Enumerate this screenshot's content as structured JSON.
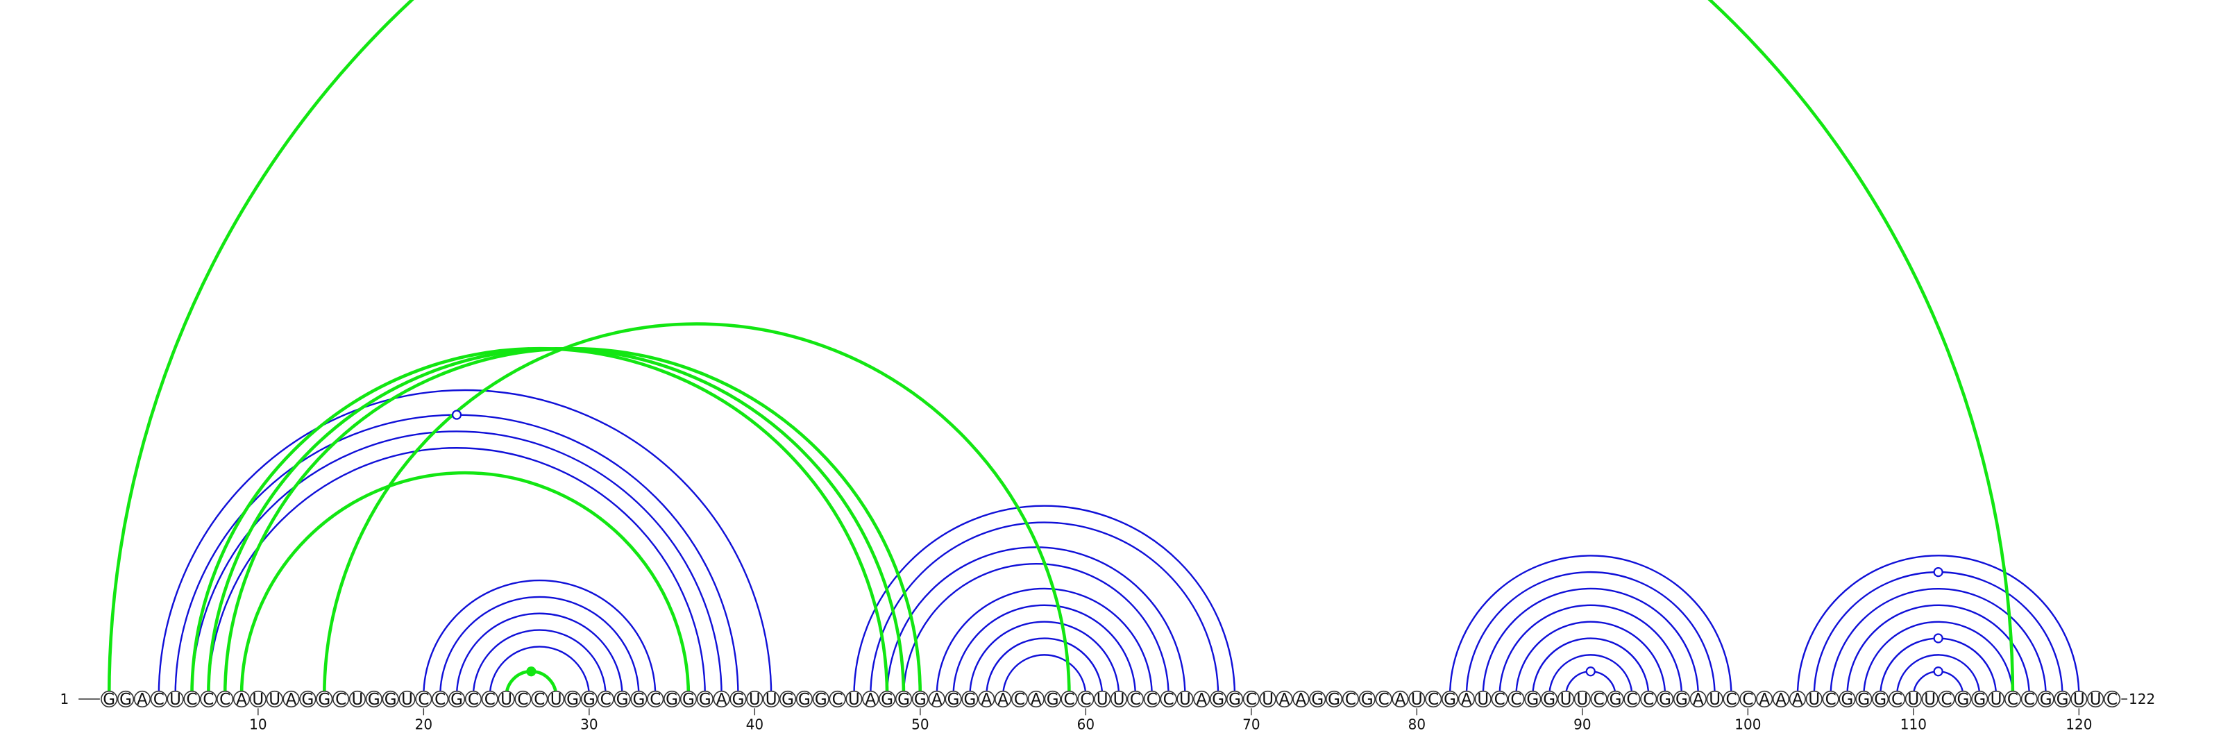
{
  "sequence": "GGACUCCCAUUAGGCUGGUCCGCCUCCUGGCGGCGGGAGUUGGGCUAGGGAGGAACAGCCUUCCCUAGGCUAAGGCGCAUCGAUCCGGUUCGCCGGAUCCAAAUCGGGCUUCGGUCCGGUUC",
  "start_label": "1",
  "end_label": "122",
  "tick_positions": [
    10,
    20,
    30,
    40,
    50,
    60,
    70,
    80,
    90,
    100,
    110,
    120
  ],
  "colors": {
    "blue": "#1010d8",
    "green": "#12e612"
  },
  "blue_pairs": [
    [
      4,
      41
    ],
    [
      5,
      39
    ],
    [
      6,
      38
    ],
    [
      7,
      37
    ],
    [
      20,
      34
    ],
    [
      21,
      33
    ],
    [
      22,
      32
    ],
    [
      23,
      31
    ],
    [
      24,
      30
    ],
    [
      46,
      69
    ],
    [
      47,
      68
    ],
    [
      48,
      66
    ],
    [
      49,
      65
    ],
    [
      51,
      64
    ],
    [
      52,
      63
    ],
    [
      53,
      62
    ],
    [
      54,
      61
    ],
    [
      55,
      60
    ],
    [
      82,
      99
    ],
    [
      83,
      98
    ],
    [
      84,
      97
    ],
    [
      85,
      96
    ],
    [
      86,
      95
    ],
    [
      87,
      94
    ],
    [
      88,
      93
    ],
    [
      89,
      92
    ],
    [
      103,
      120
    ],
    [
      104,
      119
    ],
    [
      105,
      118
    ],
    [
      106,
      117
    ],
    [
      107,
      116
    ],
    [
      108,
      115
    ],
    [
      109,
      114
    ],
    [
      110,
      113
    ]
  ],
  "green_pairs": [
    [
      1,
      116
    ],
    [
      6,
      48
    ],
    [
      7,
      49
    ],
    [
      8,
      50
    ],
    [
      9,
      36
    ],
    [
      14,
      59
    ],
    [
      25,
      28
    ]
  ],
  "blue_markers": [
    {
      "arc": [
        5,
        39
      ],
      "filled": false
    },
    {
      "arc": [
        89,
        92
      ],
      "filled": false
    },
    {
      "arc": [
        104,
        119
      ],
      "filled": false
    },
    {
      "arc": [
        108,
        115
      ],
      "filled": false
    },
    {
      "arc": [
        110,
        113
      ],
      "filled": false
    }
  ],
  "green_markers": [
    {
      "arc": [
        25,
        28
      ],
      "filled": true
    }
  ]
}
